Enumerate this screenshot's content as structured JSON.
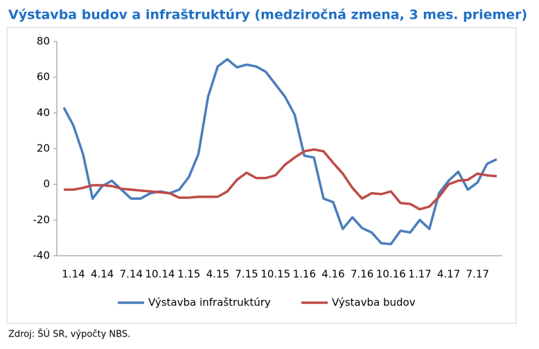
{
  "chart_data": {
    "type": "line",
    "title": "Výstavba budov a infraštruktúry (medziročná zmena, 3 mes. priemer)",
    "source": "Zdroj: ŠÚ SR, výpočty NBS.",
    "categories": [
      "1.14",
      null,
      null,
      "4.14",
      null,
      null,
      "7.14",
      null,
      null,
      "10.14",
      null,
      null,
      "1.15",
      null,
      null,
      "4.15",
      null,
      null,
      "7.15",
      null,
      null,
      "10.15",
      null,
      null,
      "1.16",
      null,
      null,
      "4.16",
      null,
      null,
      "7.16",
      null,
      null,
      "10.16",
      null,
      null,
      "1.17",
      null,
      null,
      "4.17",
      null,
      null,
      "7.17",
      null,
      null,
      null
    ],
    "series": [
      {
        "name": "Výstavba infraštruktúry",
        "color": "#4a7ebb",
        "values": [
          43,
          33,
          17,
          -8,
          -1,
          2,
          -3,
          -8,
          -8,
          -5,
          -4,
          -5,
          -3,
          4,
          17,
          49,
          66,
          70,
          65.5,
          67,
          66,
          63,
          56,
          49,
          39,
          16,
          15,
          -8,
          -10,
          -25,
          -18.5,
          -24.5,
          -27,
          -33,
          -33.5,
          -26,
          -27,
          -20,
          -25,
          -5,
          2,
          7,
          -3,
          1,
          11.5,
          14
        ]
      },
      {
        "name": "Výstavba budov",
        "color": "#be4b48",
        "values": [
          -3,
          -3,
          -2,
          -0.5,
          -0.5,
          -1,
          -2.5,
          -3,
          -3.5,
          -4,
          -4.5,
          -5,
          -7.5,
          -7.5,
          -7,
          -7,
          -7,
          -4,
          2.5,
          6.5,
          3.5,
          3.5,
          5,
          11,
          15,
          18.5,
          19.5,
          18.5,
          12,
          6,
          -2,
          -8,
          -5,
          -5.5,
          -4,
          -10.5,
          -11,
          -14,
          -12.5,
          -7,
          0,
          2,
          2.5,
          6,
          5,
          4.5
        ]
      }
    ],
    "ylim": [
      -40,
      80
    ],
    "yticks": [
      -40,
      -20,
      0,
      20,
      40,
      60,
      80
    ],
    "grid": false,
    "legend": "bottom"
  }
}
